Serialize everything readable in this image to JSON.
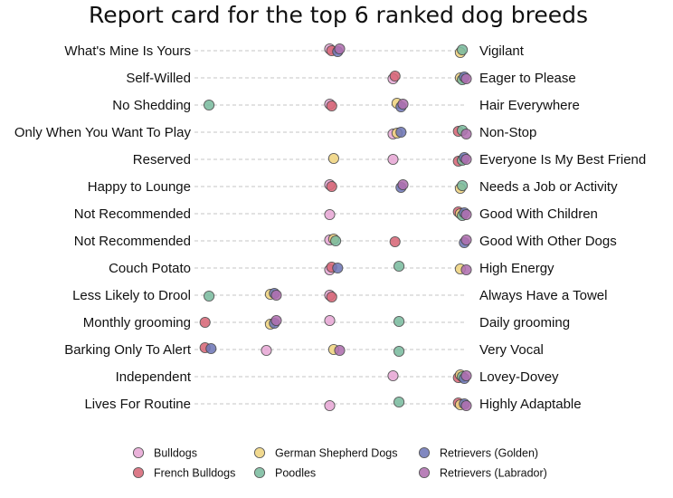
{
  "chart_data": {
    "type": "scatter",
    "title": "Report card for the top 6 ranked dog breeds",
    "xlabel": "",
    "ylabel": "",
    "xlim": [
      1,
      5
    ],
    "grid": false,
    "legend_position": "bottom",
    "traits": [
      {
        "left": "What's Mine Is Yours",
        "right": "Vigilant"
      },
      {
        "left": "Self-Willed",
        "right": "Eager to Please"
      },
      {
        "left": "No Shedding",
        "right": "Hair Everywhere"
      },
      {
        "left": "Only When You Want To Play",
        "right": "Non-Stop"
      },
      {
        "left": "Reserved",
        "right": "Everyone Is My Best Friend"
      },
      {
        "left": "Happy to Lounge",
        "right": "Needs a Job or Activity"
      },
      {
        "left": "Not Recommended",
        "right": "Good With Children"
      },
      {
        "left": "Not Recommended",
        "right": "Good With Other Dogs"
      },
      {
        "left": "Couch Potato",
        "right": "High Energy"
      },
      {
        "left": "Less Likely to Drool",
        "right": "Always Have a Towel"
      },
      {
        "left": "Monthly grooming",
        "right": "Daily grooming"
      },
      {
        "left": "Barking Only To Alert",
        "right": "Very Vocal"
      },
      {
        "left": "Independent",
        "right": "Lovey-Dovey"
      },
      {
        "left": "Lives For Routine",
        "right": "Highly Adaptable"
      }
    ],
    "series": [
      {
        "name": "Bulldogs",
        "color": "#e8a8d6",
        "values": [
          3,
          4,
          3,
          4,
          4,
          3,
          3,
          3,
          3,
          3,
          3,
          2,
          4,
          3
        ]
      },
      {
        "name": "French Bulldogs",
        "color": "#d86878",
        "values": [
          3,
          4,
          3,
          5,
          5,
          3,
          5,
          4,
          3,
          3,
          1,
          1,
          5,
          5
        ]
      },
      {
        "name": "German Shepherd Dogs",
        "color": "#f0d480",
        "values": [
          5,
          5,
          4,
          4,
          3,
          5,
          5,
          3,
          5,
          2,
          2,
          3,
          5,
          5
        ]
      },
      {
        "name": "Poodles",
        "color": "#7cbca0",
        "values": [
          5,
          5,
          1,
          5,
          5,
          5,
          5,
          3,
          4,
          1,
          4,
          4,
          5,
          4
        ]
      },
      {
        "name": "Retrievers (Golden)",
        "color": "#7078b8",
        "values": [
          3,
          5,
          4,
          4,
          5,
          4,
          5,
          5,
          3,
          2,
          2,
          1,
          5,
          5
        ]
      },
      {
        "name": "Retrievers (Labrador)",
        "color": "#b070b0",
        "values": [
          3,
          5,
          4,
          5,
          5,
          4,
          5,
          5,
          5,
          2,
          2,
          3,
          5,
          5
        ]
      }
    ]
  }
}
